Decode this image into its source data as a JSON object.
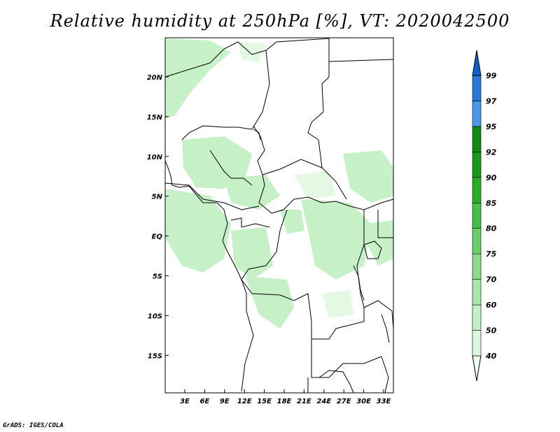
{
  "title": "Relative humidity at 250hPa [%], VT: 2020042500",
  "credit": "GrADS: IGES/COLA",
  "map": {
    "lat_labels": [
      "20N",
      "15N",
      "10N",
      "5N",
      "EQ",
      "5S",
      "10S",
      "15S"
    ],
    "lon_labels": [
      "3E",
      "6E",
      "9E",
      "12E",
      "15E",
      "18E",
      "21E",
      "24E",
      "27E",
      "30E",
      "33E"
    ]
  },
  "colorbar": {
    "labels": [
      "40",
      "50",
      "60",
      "70",
      "75",
      "80",
      "85",
      "90",
      "92",
      "95",
      "97",
      "99"
    ],
    "colors": [
      "#f0fff0",
      "#dcf8dc",
      "#c6f0c6",
      "#aae8aa",
      "#8cdc8c",
      "#6ad06a",
      "#46c046",
      "#2aae2a",
      "#189818",
      "#128a12",
      "#4a98e8",
      "#2878d8",
      "#1060c8"
    ]
  }
}
